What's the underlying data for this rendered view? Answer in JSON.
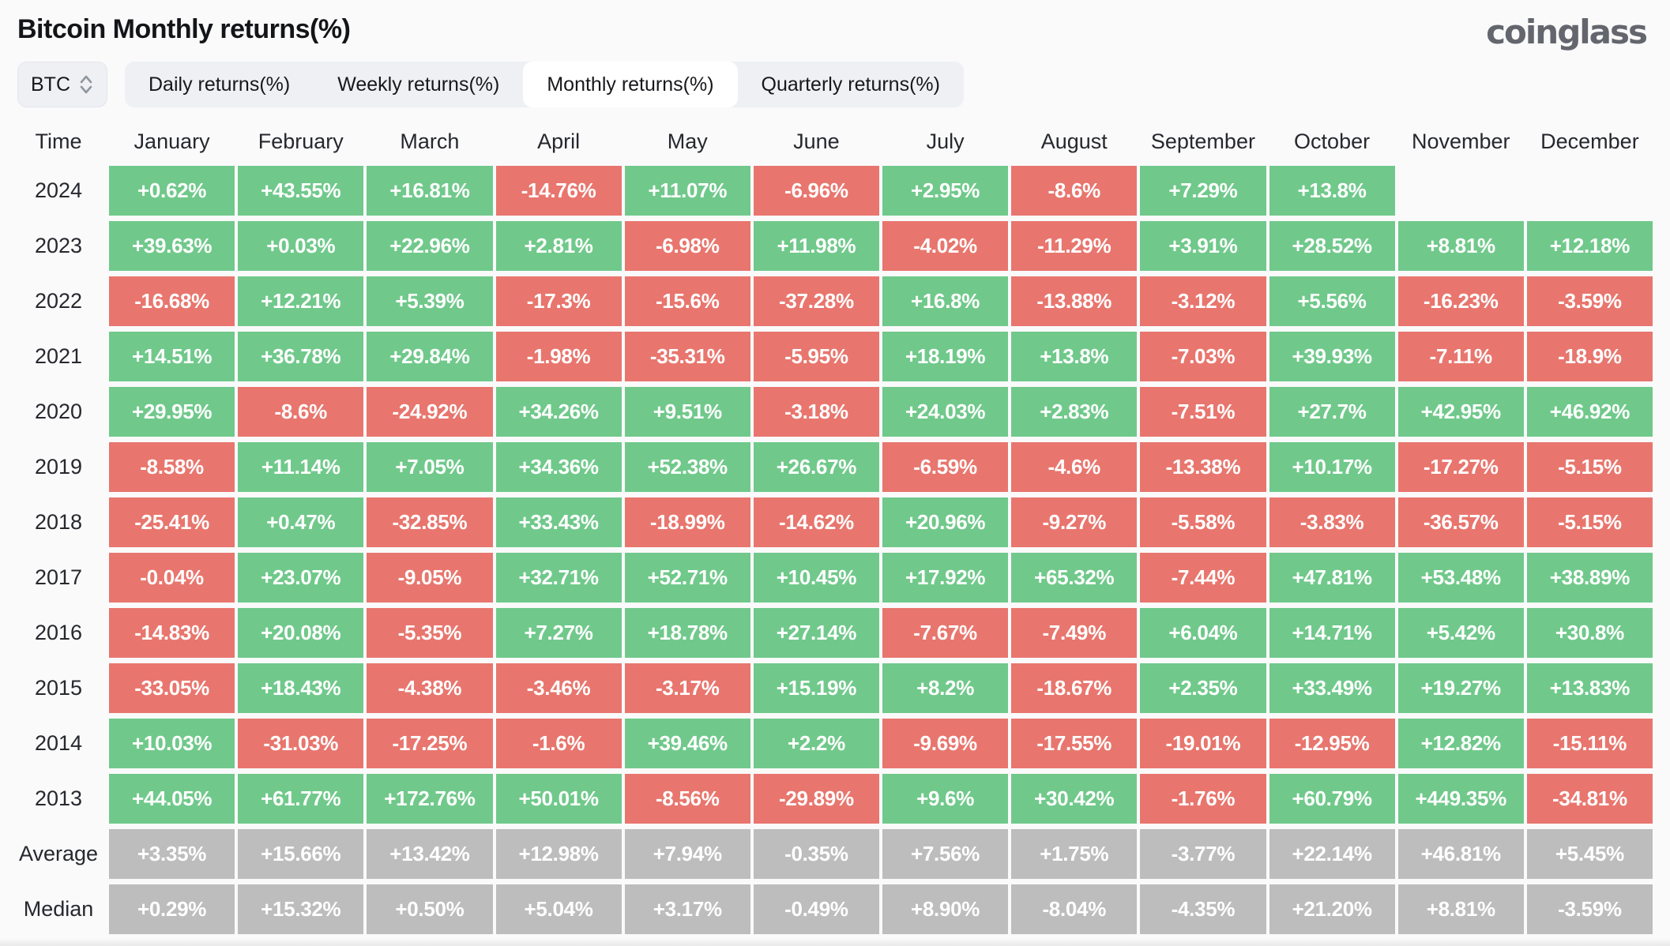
{
  "page": {
    "title": "Bitcoin Monthly returns(%)",
    "brand": "coinglass"
  },
  "toolbar": {
    "symbol_selector": {
      "value": "BTC",
      "icon": "updown-caret-icon"
    },
    "tabs": [
      {
        "label": "Daily returns(%)",
        "active": false
      },
      {
        "label": "Weekly returns(%)",
        "active": false
      },
      {
        "label": "Monthly returns(%)",
        "active": true
      },
      {
        "label": "Quarterly returns(%)",
        "active": false
      }
    ]
  },
  "colors": {
    "positive": "#70C98B",
    "negative": "#E8766E",
    "neutral": "#BDBDBD",
    "cell_text": "#FFFFFF"
  },
  "chart_data": {
    "type": "heatmap",
    "title": "Bitcoin Monthly returns(%)",
    "columns": [
      "Time",
      "January",
      "February",
      "March",
      "April",
      "May",
      "June",
      "July",
      "August",
      "September",
      "October",
      "November",
      "December"
    ],
    "rows": [
      {
        "label": "2024",
        "kind": "year",
        "values": [
          "+0.62%",
          "+43.55%",
          "+16.81%",
          "-14.76%",
          "+11.07%",
          "-6.96%",
          "+2.95%",
          "-8.6%",
          "+7.29%",
          "+13.8%",
          "",
          ""
        ]
      },
      {
        "label": "2023",
        "kind": "year",
        "values": [
          "+39.63%",
          "+0.03%",
          "+22.96%",
          "+2.81%",
          "-6.98%",
          "+11.98%",
          "-4.02%",
          "-11.29%",
          "+3.91%",
          "+28.52%",
          "+8.81%",
          "+12.18%"
        ]
      },
      {
        "label": "2022",
        "kind": "year",
        "values": [
          "-16.68%",
          "+12.21%",
          "+5.39%",
          "-17.3%",
          "-15.6%",
          "-37.28%",
          "+16.8%",
          "-13.88%",
          "-3.12%",
          "+5.56%",
          "-16.23%",
          "-3.59%"
        ]
      },
      {
        "label": "2021",
        "kind": "year",
        "values": [
          "+14.51%",
          "+36.78%",
          "+29.84%",
          "-1.98%",
          "-35.31%",
          "-5.95%",
          "+18.19%",
          "+13.8%",
          "-7.03%",
          "+39.93%",
          "-7.11%",
          "-18.9%"
        ]
      },
      {
        "label": "2020",
        "kind": "year",
        "values": [
          "+29.95%",
          "-8.6%",
          "-24.92%",
          "+34.26%",
          "+9.51%",
          "-3.18%",
          "+24.03%",
          "+2.83%",
          "-7.51%",
          "+27.7%",
          "+42.95%",
          "+46.92%"
        ]
      },
      {
        "label": "2019",
        "kind": "year",
        "values": [
          "-8.58%",
          "+11.14%",
          "+7.05%",
          "+34.36%",
          "+52.38%",
          "+26.67%",
          "-6.59%",
          "-4.6%",
          "-13.38%",
          "+10.17%",
          "-17.27%",
          "-5.15%"
        ]
      },
      {
        "label": "2018",
        "kind": "year",
        "values": [
          "-25.41%",
          "+0.47%",
          "-32.85%",
          "+33.43%",
          "-18.99%",
          "-14.62%",
          "+20.96%",
          "-9.27%",
          "-5.58%",
          "-3.83%",
          "-36.57%",
          "-5.15%"
        ]
      },
      {
        "label": "2017",
        "kind": "year",
        "values": [
          "-0.04%",
          "+23.07%",
          "-9.05%",
          "+32.71%",
          "+52.71%",
          "+10.45%",
          "+17.92%",
          "+65.32%",
          "-7.44%",
          "+47.81%",
          "+53.48%",
          "+38.89%"
        ]
      },
      {
        "label": "2016",
        "kind": "year",
        "values": [
          "-14.83%",
          "+20.08%",
          "-5.35%",
          "+7.27%",
          "+18.78%",
          "+27.14%",
          "-7.67%",
          "-7.49%",
          "+6.04%",
          "+14.71%",
          "+5.42%",
          "+30.8%"
        ]
      },
      {
        "label": "2015",
        "kind": "year",
        "values": [
          "-33.05%",
          "+18.43%",
          "-4.38%",
          "-3.46%",
          "-3.17%",
          "+15.19%",
          "+8.2%",
          "-18.67%",
          "+2.35%",
          "+33.49%",
          "+19.27%",
          "+13.83%"
        ]
      },
      {
        "label": "2014",
        "kind": "year",
        "values": [
          "+10.03%",
          "-31.03%",
          "-17.25%",
          "-1.6%",
          "+39.46%",
          "+2.2%",
          "-9.69%",
          "-17.55%",
          "-19.01%",
          "-12.95%",
          "+12.82%",
          "-15.11%"
        ]
      },
      {
        "label": "2013",
        "kind": "year",
        "values": [
          "+44.05%",
          "+61.77%",
          "+172.76%",
          "+50.01%",
          "-8.56%",
          "-29.89%",
          "+9.6%",
          "+30.42%",
          "-1.76%",
          "+60.79%",
          "+449.35%",
          "-34.81%"
        ]
      },
      {
        "label": "Average",
        "kind": "summary",
        "values": [
          "+3.35%",
          "+15.66%",
          "+13.42%",
          "+12.98%",
          "+7.94%",
          "-0.35%",
          "+7.56%",
          "+1.75%",
          "-3.77%",
          "+22.14%",
          "+46.81%",
          "+5.45%"
        ]
      },
      {
        "label": "Median",
        "kind": "summary",
        "values": [
          "+0.29%",
          "+15.32%",
          "+0.50%",
          "+5.04%",
          "+3.17%",
          "-0.49%",
          "+8.90%",
          "-8.04%",
          "-4.35%",
          "+21.20%",
          "+8.81%",
          "-3.59%"
        ]
      }
    ]
  }
}
